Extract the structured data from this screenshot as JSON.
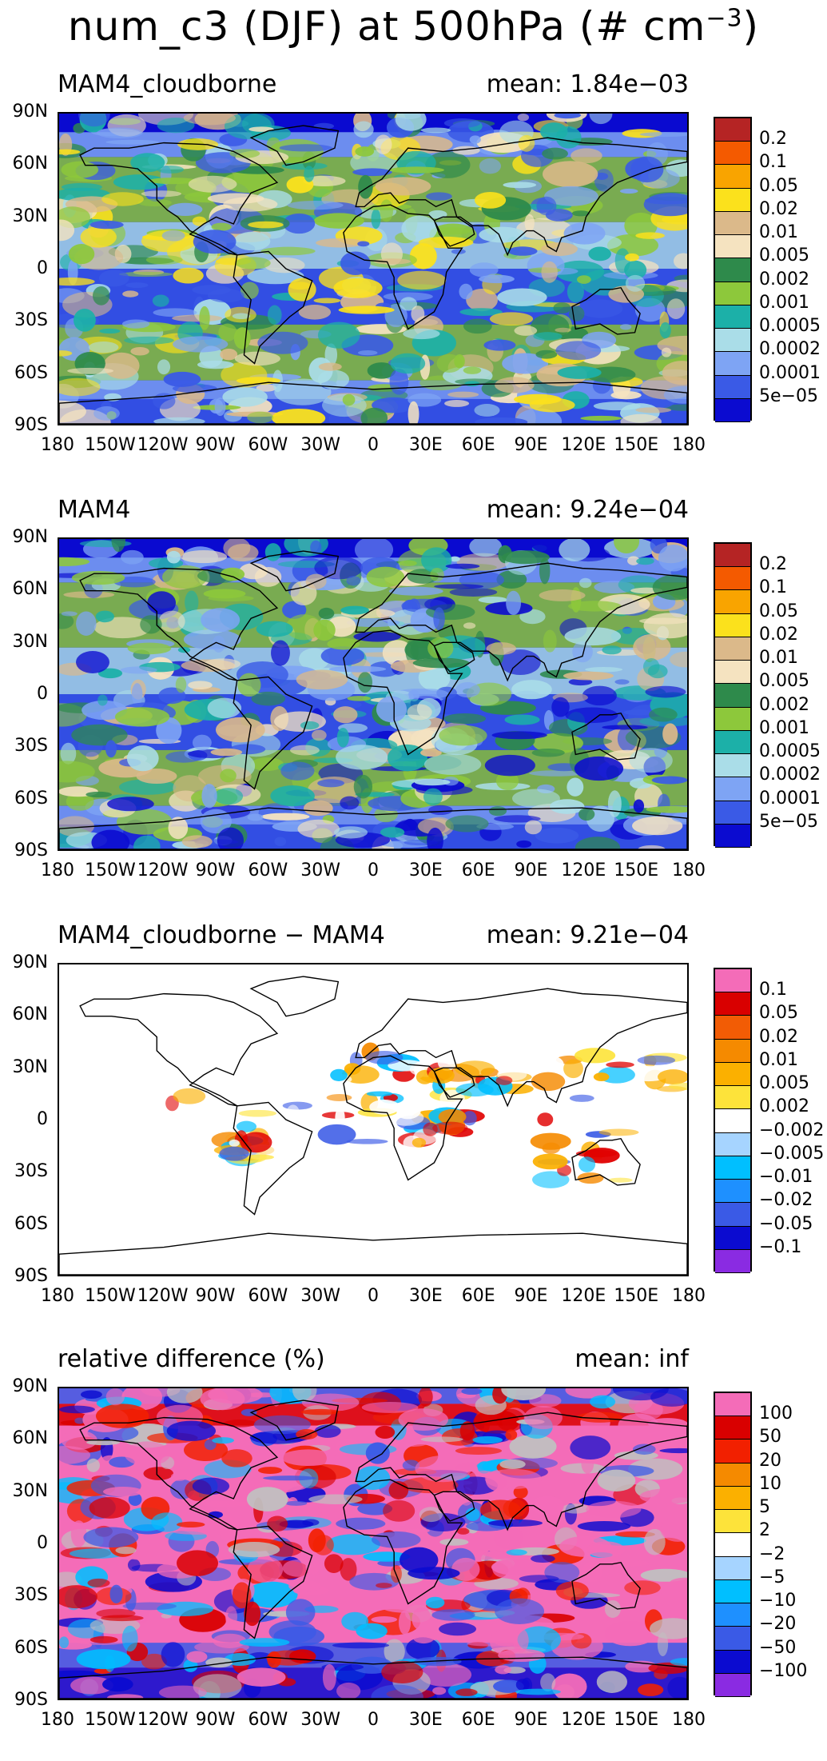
{
  "title": {
    "main": "num_c3 (DJF) at 500hPa (# cm",
    "sup": "−3",
    "end": ")"
  },
  "x_ticks": [
    "180",
    "150W",
    "120W",
    "90W",
    "60W",
    "30W",
    "0",
    "30E",
    "60E",
    "90E",
    "120E",
    "150E",
    "180"
  ],
  "y_ticks": [
    "90N",
    "60N",
    "30N",
    "0",
    "30S",
    "60S",
    "90S"
  ],
  "panels": [
    {
      "title": "MAM4_cloudborne",
      "mean": "mean:  1.84e−03",
      "colors": [
        "#0b0bd0",
        "#3a5ae6",
        "#7ea4f4",
        "#aadde8",
        "#1cb0a8",
        "#8dc83b",
        "#2e8a4b",
        "#f5e3c0",
        "#dbb98a",
        "#fbe11c",
        "#f9a400",
        "#f45a00",
        "#b52424"
      ],
      "labels": [
        "5e−05",
        "0.0001",
        "0.0002",
        "0.0005",
        "0.001",
        "0.002",
        "0.005",
        "0.01",
        "0.02",
        "0.05",
        "0.1",
        "0.2"
      ],
      "palette": [
        "#0b0bd0",
        "#3a5ae6",
        "#7ea4f4",
        "#aadde8",
        "#1cb0a8",
        "#8dc83b",
        "#2e8a4b",
        "#f5e3c0",
        "#dbb98a",
        "#fbe11c"
      ]
    },
    {
      "title": "MAM4",
      "mean": "mean:  9.24e−04",
      "colors": [
        "#0b0bd0",
        "#3a5ae6",
        "#7ea4f4",
        "#aadde8",
        "#1cb0a8",
        "#8dc83b",
        "#2e8a4b",
        "#f5e3c0",
        "#dbb98a",
        "#fbe11c",
        "#f9a400",
        "#f45a00",
        "#b52424"
      ],
      "labels": [
        "5e−05",
        "0.0001",
        "0.0002",
        "0.0005",
        "0.001",
        "0.002",
        "0.005",
        "0.01",
        "0.02",
        "0.05",
        "0.1",
        "0.2"
      ],
      "palette": [
        "#0b0bd0",
        "#0b0bd0",
        "#3a5ae6",
        "#7ea4f4",
        "#aadde8",
        "#1cb0a8",
        "#8dc83b",
        "#2e8a4b",
        "#f5e3c0",
        "#dbb98a"
      ]
    },
    {
      "title": "MAM4_cloudborne − MAM4",
      "mean": "mean:  9.21e−04",
      "colors": [
        "#8a2be2",
        "#0b0bd0",
        "#3a5ae6",
        "#1e90ff",
        "#00bfff",
        "#a6d4ff",
        "#ffffff",
        "#fde33a",
        "#fbb000",
        "#f58a00",
        "#f25c05",
        "#d90000",
        "#f46cb8"
      ],
      "labels": [
        "−0.1",
        "−0.05",
        "−0.02",
        "−0.01",
        "−0.005",
        "−0.002",
        "0.002",
        "0.005",
        "0.01",
        "0.02",
        "0.05",
        "0.1"
      ],
      "palette": [
        "#ffffff",
        "#ffffff",
        "#ffffff",
        "#fde33a",
        "#fbb000",
        "#f58a00",
        "#e00000",
        "#00bfff",
        "#3a5ae6"
      ]
    },
    {
      "title": "relative difference (%)",
      "mean": "mean:     inf",
      "colors": [
        "#8a2be2",
        "#0b0bd0",
        "#3a5ae6",
        "#1e90ff",
        "#00bfff",
        "#a6d4ff",
        "#ffffff",
        "#fde33a",
        "#fbb000",
        "#f58a00",
        "#f22000",
        "#d90000",
        "#f46cb8"
      ],
      "labels": [
        "−100",
        "−50",
        "−20",
        "−10",
        "−5",
        "−2",
        "2",
        "5",
        "10",
        "20",
        "50",
        "100"
      ],
      "palette": [
        "#f46cb8",
        "#f46cb8",
        "#f46cb8",
        "#d90000",
        "#f22000",
        "#0b0bd0",
        "#3a5ae6",
        "#c0c0c0",
        "#00bfff"
      ]
    }
  ]
}
